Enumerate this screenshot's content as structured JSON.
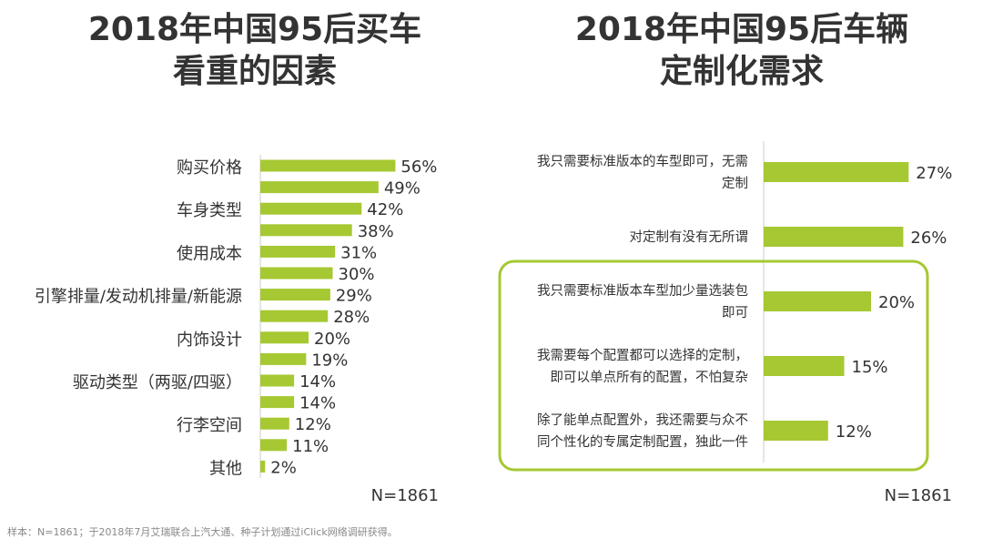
{
  "left_chart": {
    "title_line1": "2018年中国95后买车",
    "title_line2": "看重的因素",
    "sample": "N=1861"
  },
  "right_chart": {
    "title_line1": "2018年中国95后车辆",
    "title_line2": "定制化需求",
    "sample": "N=1861"
  },
  "footnote": "样本：N=1861；于2018年7月艾瑞联合上汽大通、种子计划通过iClick网络调研获得。",
  "colors": {
    "bar": "#a6c832",
    "highlight_border": "#a6c832",
    "axis": "#cccccc"
  },
  "chart_data": [
    {
      "type": "bar",
      "orientation": "horizontal",
      "title": "2018年中国95后买车看重的因素",
      "categories": [
        "购买价格",
        "",
        "车身类型",
        "",
        "使用成本",
        "",
        "引擎排量/发动机排量/新能源",
        "",
        "内饰设计",
        "",
        "驱动类型（两驱/四驱）",
        "",
        "行李空间",
        "",
        "其他"
      ],
      "values": [
        56,
        49,
        42,
        38,
        31,
        30,
        29,
        28,
        20,
        19,
        14,
        14,
        12,
        11,
        2
      ],
      "value_labels": [
        "56%",
        "49%",
        "42%",
        "38%",
        "31%",
        "30%",
        "29%",
        "28%",
        "20%",
        "19%",
        "14%",
        "14%",
        "12%",
        "11%",
        "2%"
      ],
      "unit": "%",
      "xlim": [
        0,
        100
      ]
    },
    {
      "type": "bar",
      "orientation": "horizontal",
      "title": "2018年中国95后车辆定制化需求",
      "categories": [
        [
          "我只需要标准版本的车型即可，无需",
          "定制"
        ],
        [
          "对定制有没有无所谓"
        ],
        [
          "我只需要标准版本车型加少量选装包",
          "即可"
        ],
        [
          "我需要每个配置都可以选择的定制，",
          "即可以单点所有的配置，不怕复杂"
        ],
        [
          "除了能单点配置外，我还需要与众不",
          "同个性化的专属定制配置，独此一件"
        ]
      ],
      "values": [
        27,
        26,
        20,
        15,
        12
      ],
      "value_labels": [
        "27%",
        "26%",
        "20%",
        "15%",
        "12%"
      ],
      "unit": "%",
      "xlim": [
        0,
        100
      ],
      "highlighted": [
        2,
        3,
        4
      ]
    }
  ]
}
